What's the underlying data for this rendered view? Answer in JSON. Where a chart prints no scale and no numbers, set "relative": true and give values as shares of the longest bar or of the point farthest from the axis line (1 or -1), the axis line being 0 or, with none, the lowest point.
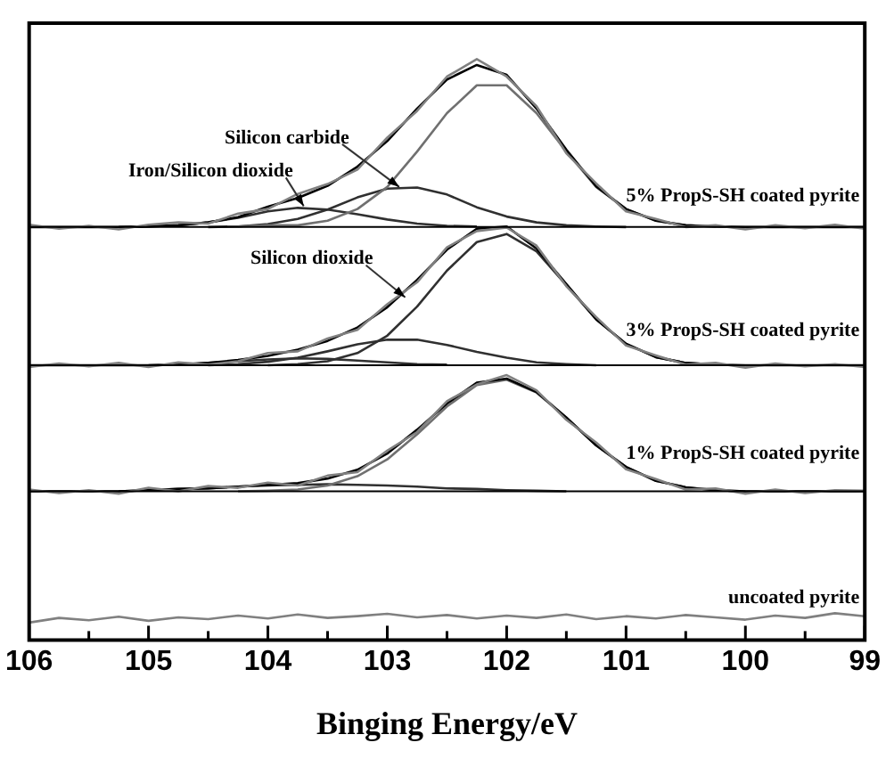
{
  "chart_data": {
    "type": "line",
    "xlabel": "Binging Energy/eV",
    "relative": true,
    "marker": "none",
    "legend": false,
    "grid": false,
    "xlim": [
      106,
      99
    ],
    "xticks": [
      106,
      {
        "value": 105.5,
        "label": null
      },
      105,
      {
        "value": 104.5,
        "label": null
      },
      104,
      {
        "value": 103.5,
        "label": null
      },
      103,
      {
        "value": 102.5,
        "label": null
      },
      102,
      {
        "value": 101.5,
        "label": null
      },
      101,
      {
        "value": 100.5,
        "label": null
      },
      100,
      {
        "value": 99.5,
        "label": null
      },
      99
    ],
    "x": [
      106,
      105.75,
      105.5,
      105.25,
      105,
      104.75,
      104.5,
      104.25,
      104,
      103.75,
      103.5,
      103.25,
      103,
      102.75,
      102.5,
      102.25,
      102,
      101.75,
      101.5,
      101.25,
      101,
      100.75,
      100.5,
      100.25,
      100,
      99.75,
      99.5,
      99.25,
      99
    ],
    "series": [
      {
        "name": "5% PropS-SH coated pyrite",
        "color": "#808080",
        "values": [
          0.715,
          0.708,
          0.713,
          0.707,
          0.715,
          0.719,
          0.717,
          0.734,
          0.742,
          0.768,
          0.785,
          0.81,
          0.865,
          0.911,
          0.97,
          1.0,
          0.97,
          0.919,
          0.838,
          0.786,
          0.738,
          0.725,
          0.711,
          0.714,
          0.707,
          0.714,
          0.709,
          0.715,
          0.708
        ]
      },
      {
        "color": "#000000",
        "values": [
          0.711,
          0.711,
          0.711,
          0.711,
          0.712,
          0.714,
          0.719,
          0.728,
          0.746,
          0.761,
          0.782,
          0.815,
          0.859,
          0.915,
          0.965,
          0.99,
          0.973,
          0.915,
          0.844,
          0.781,
          0.742,
          0.722,
          0.714,
          0.712,
          0.711,
          0.711,
          0.711,
          0.711,
          0.711
        ]
      },
      {
        "color": "#707070",
        "x": [
          104.25,
          104,
          103.75,
          103.5,
          103.25,
          103,
          102.75,
          102.5,
          102.25,
          102,
          101.75,
          101.5,
          101.25,
          101,
          100.75,
          100.5,
          100.25
        ],
        "values": [
          0.712,
          0.714,
          0.714,
          0.722,
          0.742,
          0.78,
          0.841,
          0.907,
          0.955,
          0.955,
          0.907,
          0.841,
          0.78,
          0.742,
          0.722,
          0.714,
          0.712
        ]
      },
      {
        "color": "#303030",
        "x": [
          104.5,
          104.25,
          104,
          103.75,
          103.5,
          103.25,
          103,
          102.75,
          102.5,
          102.25,
          102,
          101.75,
          101.5,
          101.25,
          101
        ],
        "values": [
          0.711,
          0.712,
          0.716,
          0.725,
          0.741,
          0.762,
          0.777,
          0.779,
          0.767,
          0.745,
          0.729,
          0.719,
          0.714,
          0.712,
          0.711
        ]
      },
      {
        "color": "#303030",
        "x": [
          105.25,
          105,
          104.75,
          104.5,
          104.25,
          104,
          103.75,
          103.5,
          103.25,
          103,
          102.75,
          102.5,
          102.25
        ],
        "values": [
          0.711,
          0.712,
          0.714,
          0.719,
          0.727,
          0.738,
          0.744,
          0.741,
          0.733,
          0.724,
          0.717,
          0.713,
          0.712
        ]
      },
      {
        "name": "3% PropS-SH coated pyrite",
        "color": "#808080",
        "values": [
          0.47,
          0.476,
          0.471,
          0.477,
          0.47,
          0.478,
          0.474,
          0.48,
          0.494,
          0.497,
          0.519,
          0.534,
          0.578,
          0.616,
          0.676,
          0.704,
          0.71,
          0.679,
          0.609,
          0.556,
          0.507,
          0.49,
          0.474,
          0.477,
          0.469,
          0.476,
          0.471,
          0.475,
          0.47
        ]
      },
      {
        "color": "#000000",
        "values": [
          0.473,
          0.473,
          0.473,
          0.473,
          0.473,
          0.474,
          0.477,
          0.482,
          0.489,
          0.5,
          0.515,
          0.538,
          0.573,
          0.62,
          0.672,
          0.708,
          0.712,
          0.674,
          0.613,
          0.552,
          0.51,
          0.487,
          0.477,
          0.474,
          0.473,
          0.473,
          0.473,
          0.473,
          0.473
        ]
      },
      {
        "color": "#303030",
        "x": [
          104,
          103.75,
          103.5,
          103.25,
          103,
          102.75,
          102.5,
          102.25,
          102,
          101.75,
          101.5,
          101.25,
          101,
          100.75,
          100.5,
          100.25
        ],
        "values": [
          0.473,
          0.475,
          0.48,
          0.494,
          0.524,
          0.574,
          0.636,
          0.685,
          0.699,
          0.669,
          0.611,
          0.552,
          0.51,
          0.487,
          0.477,
          0.474
        ]
      },
      {
        "color": "#303030",
        "x": [
          104.5,
          104.25,
          104,
          103.75,
          103.5,
          103.25,
          103,
          102.75,
          102.5,
          102.25,
          102,
          101.75,
          101.5,
          101.25
        ],
        "values": [
          0.473,
          0.475,
          0.479,
          0.486,
          0.497,
          0.509,
          0.517,
          0.517,
          0.508,
          0.496,
          0.486,
          0.478,
          0.475,
          0.473
        ]
      },
      {
        "color": "#303030",
        "x": [
          105,
          104.75,
          104.5,
          104.25,
          104,
          103.75,
          103.5,
          103.25,
          103,
          102.75,
          102.5
        ],
        "values": [
          0.473,
          0.474,
          0.477,
          0.48,
          0.483,
          0.485,
          0.484,
          0.481,
          0.478,
          0.475,
          0.474
        ]
      },
      {
        "name": "1% PropS-SH coated pyrite",
        "color": "#808080",
        "values": [
          0.259,
          0.253,
          0.258,
          0.252,
          0.262,
          0.256,
          0.265,
          0.262,
          0.271,
          0.266,
          0.283,
          0.289,
          0.326,
          0.358,
          0.411,
          0.44,
          0.456,
          0.43,
          0.379,
          0.34,
          0.294,
          0.277,
          0.259,
          0.261,
          0.252,
          0.259,
          0.253,
          0.258,
          0.257
        ]
      },
      {
        "color": "#000000",
        "values": [
          0.256,
          0.256,
          0.256,
          0.256,
          0.258,
          0.26,
          0.261,
          0.264,
          0.267,
          0.27,
          0.278,
          0.293,
          0.321,
          0.362,
          0.407,
          0.443,
          0.45,
          0.427,
          0.383,
          0.335,
          0.298,
          0.274,
          0.263,
          0.258,
          0.256,
          0.256,
          0.256,
          0.256,
          0.256
        ]
      },
      {
        "color": "#707070",
        "x": [
          104.25,
          104,
          103.75,
          103.5,
          103.25,
          103,
          102.75,
          102.5,
          102.25,
          102,
          101.75,
          101.5,
          101.25,
          101,
          100.75,
          100.5,
          100.25,
          100
        ],
        "values": [
          0.256,
          0.257,
          0.259,
          0.266,
          0.282,
          0.311,
          0.354,
          0.402,
          0.439,
          0.448,
          0.426,
          0.383,
          0.335,
          0.298,
          0.274,
          0.263,
          0.258,
          0.256
        ]
      },
      {
        "color": "#303030",
        "x": [
          105.25,
          105,
          104.75,
          104.5,
          104.25,
          104,
          103.75,
          103.5,
          103.25,
          103,
          102.75,
          102.5,
          102.25,
          102,
          101.75,
          101.5
        ],
        "values": [
          0.256,
          0.258,
          0.26,
          0.261,
          0.264,
          0.266,
          0.267,
          0.268,
          0.267,
          0.266,
          0.264,
          0.261,
          0.26,
          0.258,
          0.257,
          0.256
        ]
      },
      {
        "name": "uncoated pyrite",
        "color": "#808080",
        "values": [
          0.03,
          0.038,
          0.034,
          0.04,
          0.033,
          0.039,
          0.036,
          0.042,
          0.037,
          0.044,
          0.038,
          0.041,
          0.045,
          0.039,
          0.043,
          0.037,
          0.042,
          0.038,
          0.044,
          0.036,
          0.041,
          0.037,
          0.043,
          0.039,
          0.035,
          0.042,
          0.038,
          0.046,
          0.041
        ]
      }
    ],
    "ref_lines": [
      {
        "axis": "y",
        "value": 0.711,
        "color": "#000000"
      },
      {
        "axis": "y",
        "value": 0.473,
        "color": "#000000"
      },
      {
        "axis": "y",
        "value": 0.256,
        "color": "#000000"
      }
    ],
    "annotations": [
      {
        "text": "Silicon carbide",
        "x": 102.9,
        "y": 0.78
      },
      {
        "text": "Iron/Silicon dioxide",
        "x": 103.7,
        "y": 0.747
      },
      {
        "text": "Silicon dioxide",
        "x": 102.85,
        "y": 0.59
      }
    ]
  }
}
